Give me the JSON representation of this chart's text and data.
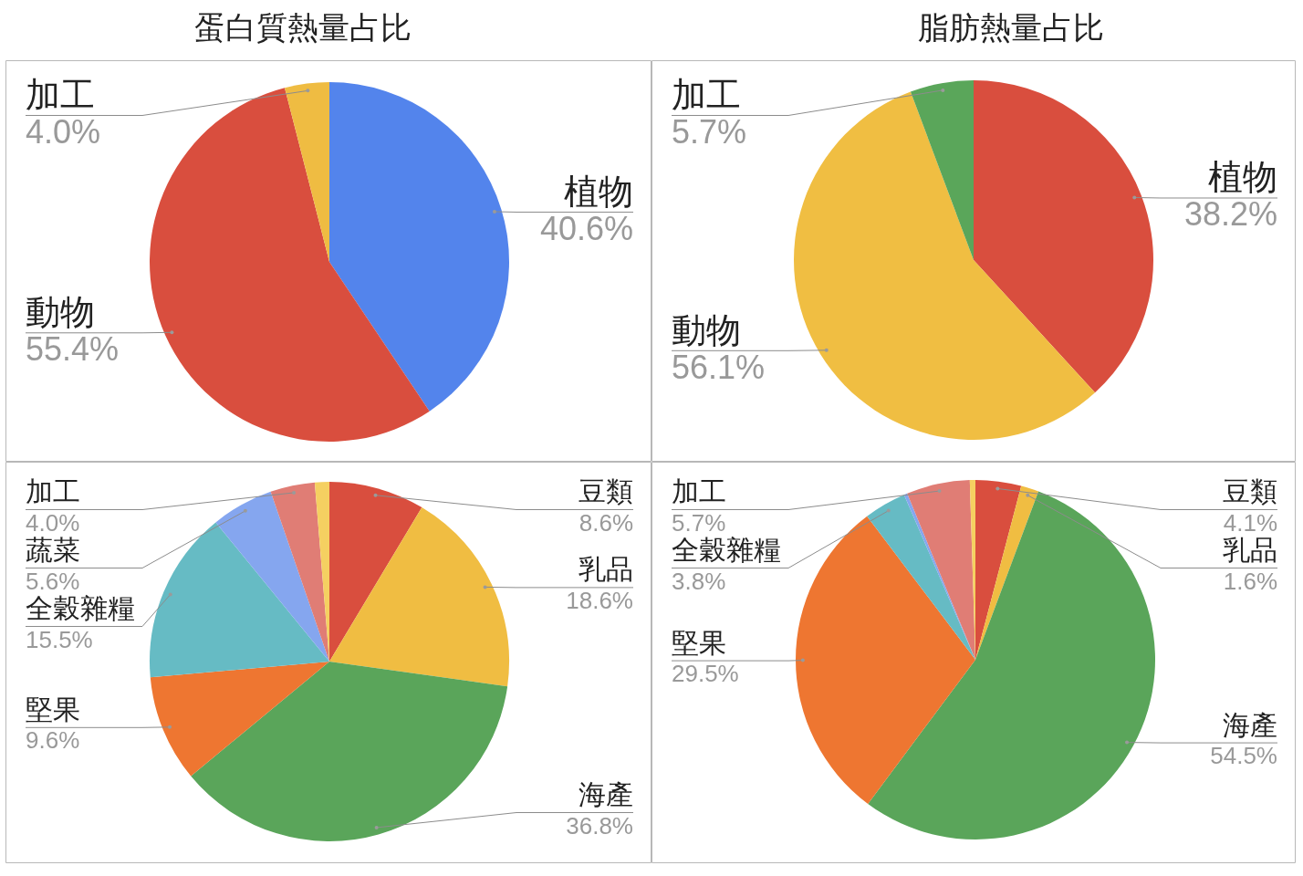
{
  "chart_data": [
    {
      "type": "pie",
      "title": "蛋白質熱量占比",
      "categories": [
        "植物",
        "動物",
        "加工"
      ],
      "values": [
        40.6,
        55.4,
        4.0
      ],
      "colors": [
        "#5384ec",
        "#d94e3e",
        "#efbc42"
      ],
      "value_labels": [
        "40.6%",
        "55.4%",
        "4.0%"
      ]
    },
    {
      "type": "pie",
      "title": "脂肪熱量占比",
      "categories": [
        "植物",
        "動物",
        "加工"
      ],
      "values": [
        38.2,
        56.1,
        5.7
      ],
      "colors": [
        "#d94e3e",
        "#f0be42",
        "#5aa65a"
      ],
      "value_labels": [
        "38.2%",
        "56.1%",
        "5.7%"
      ]
    },
    {
      "type": "pie",
      "categories": [
        "豆類",
        "乳品",
        "海產",
        "堅果",
        "全穀雜糧",
        "蔬菜",
        "加工",
        null
      ],
      "values": [
        8.6,
        18.6,
        36.8,
        9.6,
        15.5,
        5.6,
        4.0,
        1.3
      ],
      "colors": [
        "#d94e3e",
        "#f0bd42",
        "#5aa55a",
        "#ee7631",
        "#66bbc4",
        "#85a6ef",
        "#e07d75",
        "#f5d061"
      ],
      "value_labels": [
        "8.6%",
        "18.6%",
        "36.8%",
        "9.6%",
        "15.5%",
        "5.6%",
        "4.0%",
        null
      ]
    },
    {
      "type": "pie",
      "categories": [
        "豆類",
        "乳品",
        "海產",
        "堅果",
        "全穀雜糧",
        null,
        "加工",
        null
      ],
      "values": [
        4.1,
        1.6,
        54.5,
        29.5,
        3.8,
        0.3,
        5.7,
        0.5
      ],
      "colors": [
        "#d94e3e",
        "#f0bd42",
        "#5aa55a",
        "#ee7631",
        "#66bbc4",
        "#85a6ef",
        "#e07d75",
        "#f5d061"
      ],
      "value_labels": [
        "4.1%",
        "1.6%",
        "54.5%",
        "29.5%",
        "3.8%",
        null,
        "5.7%",
        null
      ]
    }
  ]
}
